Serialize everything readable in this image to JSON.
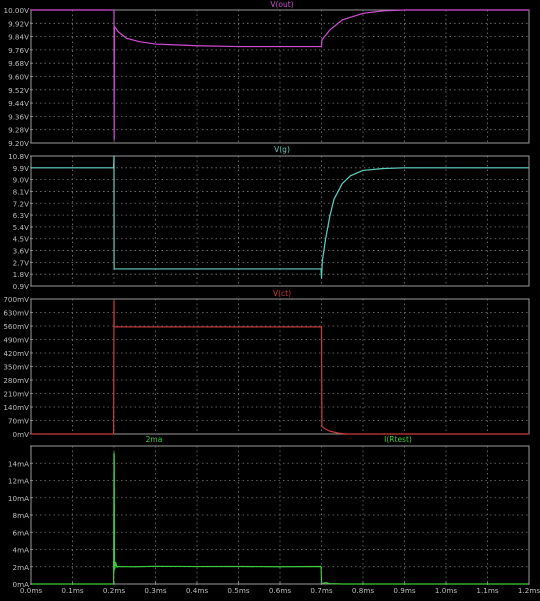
{
  "chart_data": [
    {
      "type": "line",
      "title": "V(out)",
      "xlim": [
        0,
        1.2
      ],
      "ylim": [
        9.2,
        10.0
      ],
      "y_ticks": [
        10.0,
        9.92,
        9.84,
        9.76,
        9.68,
        9.6,
        9.52,
        9.44,
        9.36,
        9.28,
        9.2
      ],
      "y_tick_labels": [
        "10.00V",
        "9.92V",
        "9.84V",
        "9.76V",
        "9.68V",
        "9.60V",
        "9.52V",
        "9.44V",
        "9.36V",
        "9.28V",
        "9.20V"
      ],
      "series": [
        {
          "name": "V(out)",
          "color": "#d24cd8",
          "x": [
            0.0,
            0.199,
            0.2,
            0.2005,
            0.201,
            0.21,
            0.23,
            0.26,
            0.3,
            0.35,
            0.4,
            0.5,
            0.6,
            0.699,
            0.7,
            0.701,
            0.72,
            0.75,
            0.8,
            0.85,
            0.9,
            1.2
          ],
          "y": [
            10.0,
            10.0,
            10.0,
            9.22,
            9.9,
            9.87,
            9.83,
            9.81,
            9.795,
            9.79,
            9.785,
            9.78,
            9.78,
            9.78,
            9.78,
            9.82,
            9.88,
            9.94,
            9.98,
            9.995,
            10.0,
            10.0
          ]
        }
      ]
    },
    {
      "type": "line",
      "title": "V(g)",
      "xlim": [
        0,
        1.2
      ],
      "ylim": [
        0.9,
        10.8
      ],
      "y_ticks": [
        10.8,
        9.9,
        9.0,
        8.1,
        7.2,
        6.3,
        5.4,
        4.5,
        3.6,
        2.7,
        1.8,
        0.9
      ],
      "y_tick_labels": [
        "10.8V",
        "9.9V",
        "9.0V",
        "8.1V",
        "7.2V",
        "6.3V",
        "5.4V",
        "4.5V",
        "3.6V",
        "2.7V",
        "1.8V",
        "0.9V"
      ],
      "series": [
        {
          "name": "V(g)",
          "color": "#5fd1c0",
          "x": [
            0.0,
            0.199,
            0.2,
            0.2002,
            0.2004,
            0.699,
            0.7,
            0.702,
            0.71,
            0.72,
            0.73,
            0.75,
            0.77,
            0.8,
            0.85,
            0.9,
            1.2
          ],
          "y": [
            9.9,
            9.9,
            10.8,
            2.5,
            2.2,
            2.2,
            1.5,
            2.8,
            4.5,
            6.2,
            7.5,
            8.7,
            9.3,
            9.7,
            9.85,
            9.9,
            9.9
          ]
        }
      ]
    },
    {
      "type": "line",
      "title": "V(ct)",
      "xlim": [
        0,
        1.2
      ],
      "ylim": [
        0,
        700
      ],
      "y_ticks": [
        700,
        630,
        560,
        490,
        420,
        350,
        280,
        210,
        140,
        70,
        0
      ],
      "y_tick_labels": [
        "700mV",
        "630mV",
        "560mV",
        "490mV",
        "420mV",
        "350mV",
        "280mV",
        "210mV",
        "140mV",
        "70mV",
        "0mV"
      ],
      "series": [
        {
          "name": "V(ct)",
          "color": "#d03a3a",
          "x": [
            0.0,
            0.199,
            0.2,
            0.2003,
            0.201,
            0.699,
            0.7,
            0.701,
            0.71,
            0.72,
            0.74,
            0.76,
            1.2
          ],
          "y": [
            0,
            0,
            690,
            560,
            555,
            555,
            555,
            40,
            25,
            15,
            5,
            0,
            0
          ]
        }
      ]
    },
    {
      "type": "line",
      "title": "",
      "xlim": [
        0,
        1.2
      ],
      "ylim": [
        0,
        16
      ],
      "y_ticks": [
        16,
        14,
        12,
        10,
        8,
        6,
        4,
        2,
        0
      ],
      "y_tick_labels": [
        "",
        "14mA",
        "12mA",
        "10mA",
        "8mA",
        "6mA",
        "4mA",
        "2mA",
        "0mA"
      ],
      "x_ticks": [
        0.0,
        0.1,
        0.2,
        0.3,
        0.4,
        0.5,
        0.6,
        0.7,
        0.8,
        0.9,
        1.0,
        1.1,
        1.2
      ],
      "x_tick_labels": [
        "0.0ms",
        "0.1ms",
        "0.2ms",
        "0.3ms",
        "0.4ms",
        "0.5ms",
        "0.6ms",
        "0.7ms",
        "0.8ms",
        "0.9ms",
        "1.0ms",
        "1.1ms",
        "1.2ms"
      ],
      "legend": [
        "2ma",
        "I(Rtest)"
      ],
      "series": [
        {
          "name": "I(Rtest)",
          "color": "#3ecc3e",
          "x": [
            0.0,
            0.199,
            0.2,
            0.2003,
            0.2006,
            0.201,
            0.202,
            0.204,
            0.207,
            0.21,
            0.25,
            0.3,
            0.4,
            0.5,
            0.6,
            0.699,
            0.7,
            0.71,
            0.72,
            0.75,
            1.2
          ],
          "y": [
            0,
            0,
            15.2,
            1.5,
            15.0,
            3.0,
            1.8,
            2.5,
            1.95,
            2.02,
            2.0,
            2.05,
            2.02,
            2.03,
            2.0,
            2.03,
            0.05,
            0.15,
            0.05,
            0.0,
            0.0
          ]
        }
      ]
    }
  ]
}
